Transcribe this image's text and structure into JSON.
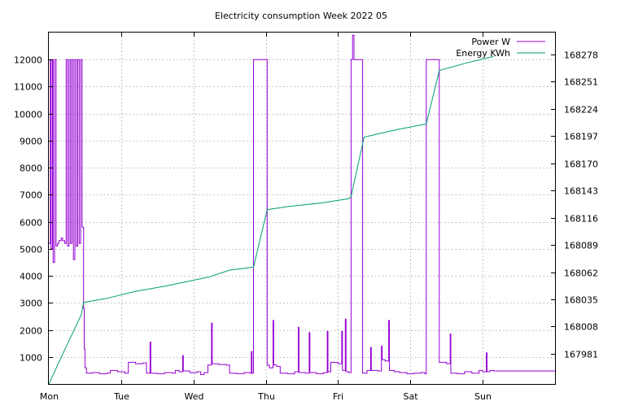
{
  "chart_data": {
    "type": "line",
    "title": "Electricity consumption Week 2022 05",
    "xlabel": "",
    "ylabel": "",
    "y2label": "",
    "x_categories": [
      "Mon",
      "Tue",
      "Wed",
      "Thu",
      "Fri",
      "Sat",
      "Sun"
    ],
    "x_range_days": [
      0,
      7
    ],
    "ylim": [
      0,
      13000
    ],
    "y_ticks": [
      1000,
      2000,
      3000,
      4000,
      5000,
      6000,
      7000,
      8000,
      9000,
      10000,
      11000,
      12000
    ],
    "y2lim": [
      167951.1,
      168299.7
    ],
    "y2_ticks": [
      167981,
      168008,
      168035,
      168062,
      168089,
      168116,
      168143,
      168170,
      168197,
      168224,
      168251,
      168278
    ],
    "grid": true,
    "legend_position": "top-right",
    "colors": {
      "power": "#9400d3",
      "energy": "#009e73"
    },
    "series": [
      {
        "name": "Power W",
        "axis": "y",
        "style": "step",
        "points": [
          [
            0.0,
            5200
          ],
          [
            0.02,
            12000
          ],
          [
            0.03,
            5000
          ],
          [
            0.05,
            12000
          ],
          [
            0.06,
            4500
          ],
          [
            0.08,
            12000
          ],
          [
            0.1,
            5100
          ],
          [
            0.12,
            5200
          ],
          [
            0.14,
            5300
          ],
          [
            0.17,
            5400
          ],
          [
            0.19,
            5300
          ],
          [
            0.22,
            5200
          ],
          [
            0.24,
            12000
          ],
          [
            0.26,
            5100
          ],
          [
            0.28,
            12000
          ],
          [
            0.3,
            5200
          ],
          [
            0.32,
            12000
          ],
          [
            0.34,
            4600
          ],
          [
            0.36,
            12000
          ],
          [
            0.38,
            5100
          ],
          [
            0.4,
            12000
          ],
          [
            0.42,
            5200
          ],
          [
            0.44,
            12000
          ],
          [
            0.46,
            5800
          ],
          [
            0.48,
            2800
          ],
          [
            0.49,
            1300
          ],
          [
            0.5,
            600
          ],
          [
            0.52,
            400
          ],
          [
            0.6,
            420
          ],
          [
            0.7,
            380
          ],
          [
            0.8,
            400
          ],
          [
            0.85,
            500
          ],
          [
            0.95,
            450
          ],
          [
            1.05,
            400
          ],
          [
            1.1,
            800
          ],
          [
            1.2,
            750
          ],
          [
            1.3,
            780
          ],
          [
            1.35,
            400
          ],
          [
            1.4,
            1550
          ],
          [
            1.41,
            400
          ],
          [
            1.5,
            380
          ],
          [
            1.6,
            420
          ],
          [
            1.7,
            400
          ],
          [
            1.75,
            500
          ],
          [
            1.8,
            450
          ],
          [
            1.85,
            1050
          ],
          [
            1.86,
            480
          ],
          [
            1.95,
            420
          ],
          [
            2.05,
            450
          ],
          [
            2.1,
            350
          ],
          [
            2.15,
            420
          ],
          [
            2.2,
            700
          ],
          [
            2.25,
            2250
          ],
          [
            2.26,
            750
          ],
          [
            2.35,
            720
          ],
          [
            2.45,
            700
          ],
          [
            2.5,
            400
          ],
          [
            2.6,
            380
          ],
          [
            2.7,
            420
          ],
          [
            2.78,
            400
          ],
          [
            2.8,
            1200
          ],
          [
            2.81,
            400
          ],
          [
            2.83,
            12000
          ],
          [
            3.02,
            700
          ],
          [
            3.05,
            600
          ],
          [
            3.1,
            2350
          ],
          [
            3.11,
            700
          ],
          [
            3.15,
            650
          ],
          [
            3.2,
            400
          ],
          [
            3.3,
            380
          ],
          [
            3.4,
            450
          ],
          [
            3.45,
            2100
          ],
          [
            3.46,
            420
          ],
          [
            3.55,
            400
          ],
          [
            3.6,
            1900
          ],
          [
            3.61,
            420
          ],
          [
            3.7,
            380
          ],
          [
            3.8,
            420
          ],
          [
            3.85,
            1950
          ],
          [
            3.86,
            450
          ],
          [
            3.9,
            800
          ],
          [
            4.0,
            750
          ],
          [
            4.05,
            1950
          ],
          [
            4.06,
            500
          ],
          [
            4.1,
            2400
          ],
          [
            4.11,
            450
          ],
          [
            4.15,
            420
          ],
          [
            4.18,
            12000
          ],
          [
            4.2,
            12900
          ],
          [
            4.22,
            12000
          ],
          [
            4.34,
            400
          ],
          [
            4.4,
            500
          ],
          [
            4.45,
            1350
          ],
          [
            4.46,
            500
          ],
          [
            4.55,
            480
          ],
          [
            4.6,
            1400
          ],
          [
            4.61,
            900
          ],
          [
            4.65,
            850
          ],
          [
            4.7,
            2350
          ],
          [
            4.71,
            500
          ],
          [
            4.78,
            450
          ],
          [
            4.85,
            420
          ],
          [
            4.95,
            380
          ],
          [
            5.05,
            400
          ],
          [
            5.15,
            420
          ],
          [
            5.2,
            380
          ],
          [
            5.22,
            12000
          ],
          [
            5.4,
            800
          ],
          [
            5.5,
            750
          ],
          [
            5.55,
            1850
          ],
          [
            5.56,
            400
          ],
          [
            5.65,
            380
          ],
          [
            5.75,
            450
          ],
          [
            5.85,
            400
          ],
          [
            5.95,
            500
          ],
          [
            6.0,
            450
          ],
          [
            6.05,
            1150
          ],
          [
            6.06,
            450
          ],
          [
            6.1,
            500
          ],
          [
            6.15,
            480
          ]
        ]
      },
      {
        "name": "Energy KWh",
        "axis": "y2",
        "style": "line",
        "points": [
          [
            0.0,
            167951
          ],
          [
            0.2,
            167982
          ],
          [
            0.45,
            168020
          ],
          [
            0.48,
            168032
          ],
          [
            0.8,
            168036
          ],
          [
            1.2,
            168043
          ],
          [
            1.6,
            168048
          ],
          [
            2.0,
            168054
          ],
          [
            2.2,
            168057
          ],
          [
            2.5,
            168064
          ],
          [
            2.83,
            168067
          ],
          [
            3.02,
            168124
          ],
          [
            3.3,
            168127
          ],
          [
            3.8,
            168131
          ],
          [
            4.15,
            168135
          ],
          [
            4.18,
            168137
          ],
          [
            4.36,
            168196
          ],
          [
            4.6,
            168200
          ],
          [
            4.85,
            168204
          ],
          [
            5.22,
            168209
          ],
          [
            5.4,
            168262
          ],
          [
            5.8,
            168270
          ],
          [
            6.15,
            168276
          ]
        ]
      }
    ]
  }
}
